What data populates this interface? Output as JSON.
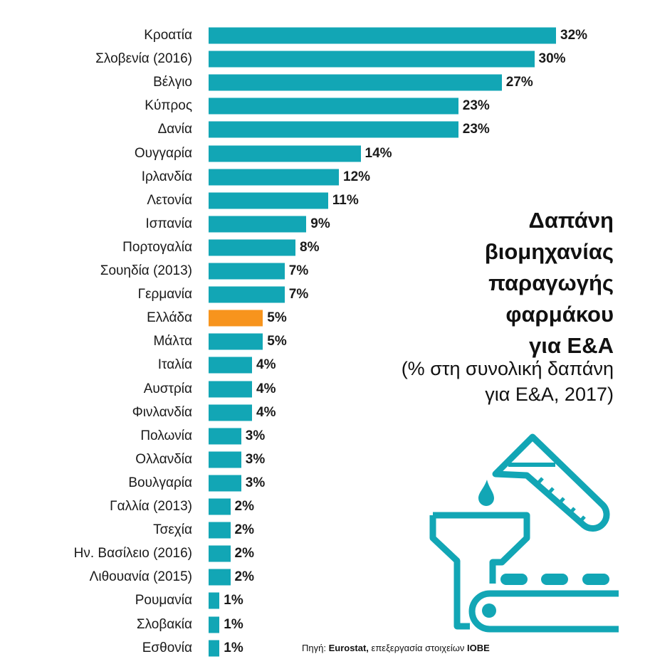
{
  "chart_data": {
    "type": "bar",
    "orientation": "horizontal",
    "title": "Δαπάνη βιομηχανίας παραγωγής φαρμάκου για Ε&Α",
    "subtitle": "(% στη συνολική δαπάνη για Ε&Α, 2017)",
    "title_lines": [
      "Δαπάνη",
      "βιομηχανίας",
      "παραγωγής",
      "φαρμάκου",
      "για Ε&Α"
    ],
    "subtitle_lines": [
      "(% στη συνολική δαπάνη",
      "για Ε&Α, 2017)"
    ],
    "categories": [
      "Κροατία",
      "Σλοβενία (2016)",
      "Βέλγιο",
      "Κύπρος",
      "Δανία",
      "Ουγγαρία",
      "Ιρλανδία",
      "Λετονία",
      "Ισπανία",
      "Πορτογαλία",
      "Σουηδία (2013)",
      "Γερμανία",
      "Ελλάδα",
      "Μάλτα",
      "Ιταλία",
      "Αυστρία",
      "Φινλανδία",
      "Πολωνία",
      "Ολλανδία",
      "Βουλγαρία",
      "Γαλλία (2013)",
      "Τσεχία",
      "Ην. Βασίλειο (2016)",
      "Λιθουανία (2015)",
      "Ρουμανία",
      "Σλοβακία",
      "Εσθονία"
    ],
    "values": [
      32,
      30,
      27,
      23,
      23,
      14,
      12,
      11,
      9,
      8,
      7,
      7,
      5,
      5,
      4,
      4,
      4,
      3,
      3,
      3,
      2,
      2,
      2,
      2,
      1,
      1,
      1
    ],
    "value_labels": [
      "32%",
      "30%",
      "27%",
      "23%",
      "23%",
      "14%",
      "12%",
      "11%",
      "9%",
      "8%",
      "7%",
      "7%",
      "5%",
      "5%",
      "4%",
      "4%",
      "4%",
      "3%",
      "3%",
      "3%",
      "2%",
      "2%",
      "2%",
      "2%",
      "1%",
      "1%",
      "1%"
    ],
    "xlim": [
      0,
      32
    ],
    "grid": false,
    "colors": {
      "default": "#12a6b5",
      "highlight": "#f7941d"
    },
    "highlight_category": "Ελλάδα"
  },
  "source": {
    "prefix": "Πηγή: ",
    "bold1": "Eurostat,",
    "middle": " επεξεργασία στοιχείων ",
    "bold2": "ΙΟΒΕ"
  },
  "icon": "pharma-factory-icon"
}
